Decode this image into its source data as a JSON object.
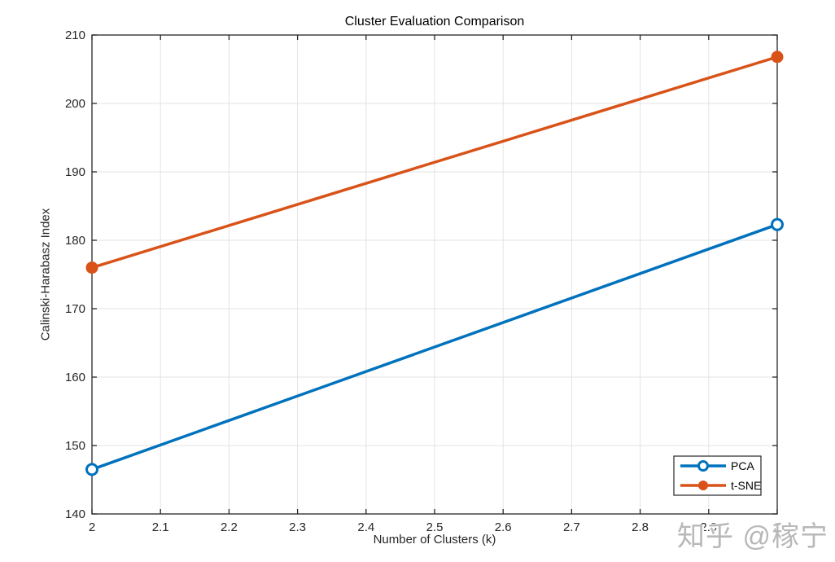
{
  "chart_data": {
    "type": "line",
    "title": "Cluster Evaluation Comparison",
    "xlabel": "Number of Clusters (k)",
    "ylabel": "Calinski-Harabasz Index",
    "x": [
      2,
      3
    ],
    "series": [
      {
        "name": "PCA",
        "values": [
          146.5,
          182.3
        ],
        "color": "#0072BD",
        "marker": "open-circle"
      },
      {
        "name": "t-SNE",
        "values": [
          176.0,
          206.8
        ],
        "color": "#D95319",
        "marker": "filled-circle"
      }
    ],
    "xlim": [
      2,
      3
    ],
    "ylim": [
      140,
      210
    ],
    "xticks": [
      "2",
      "2.1",
      "2.2",
      "2.3",
      "2.4",
      "2.5",
      "2.6",
      "2.7",
      "2.8",
      "2.9",
      "3"
    ],
    "yticks": [
      "140",
      "150",
      "160",
      "170",
      "180",
      "190",
      "200",
      "210"
    ],
    "grid": true,
    "legend_position": "bottom-right",
    "axis_color": "#262626",
    "grid_color": "#e3e3e3",
    "background": "#ffffff"
  },
  "watermark": {
    "text": "知乎 @稼宁",
    "color": "#b8b8b8"
  }
}
